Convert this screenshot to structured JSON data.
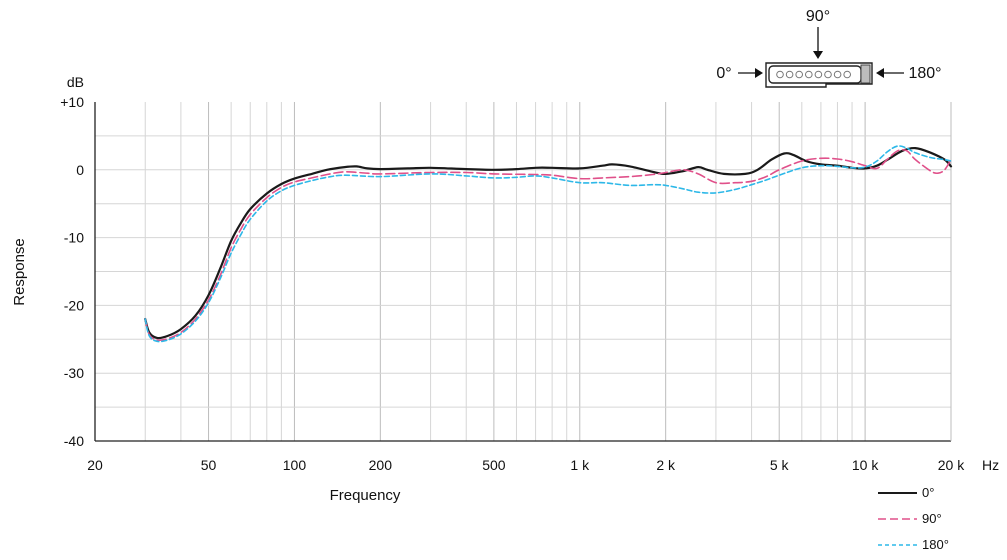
{
  "chart_data": {
    "type": "line",
    "title": "",
    "xlabel": "Frequency",
    "ylabel": "Response",
    "yunit": "dB",
    "xunit": "Hz",
    "xscale": "log",
    "xlim": [
      20,
      20000
    ],
    "ylim": [
      -40,
      10
    ],
    "grid": true,
    "legend_position": "bottom-right",
    "x_ticks": [
      {
        "value": 20,
        "label": "20"
      },
      {
        "value": 50,
        "label": "50"
      },
      {
        "value": 100,
        "label": "100"
      },
      {
        "value": 200,
        "label": "200"
      },
      {
        "value": 500,
        "label": "500"
      },
      {
        "value": 1000,
        "label": "1 k"
      },
      {
        "value": 2000,
        "label": "2 k"
      },
      {
        "value": 5000,
        "label": "5 k"
      },
      {
        "value": 10000,
        "label": "10 k"
      },
      {
        "value": 20000,
        "label": "20 k"
      }
    ],
    "y_ticks": [
      {
        "value": 10,
        "label": "+10"
      },
      {
        "value": 0,
        "label": "0"
      },
      {
        "value": -10,
        "label": "-10"
      },
      {
        "value": -20,
        "label": "-20"
      },
      {
        "value": -30,
        "label": "-30"
      },
      {
        "value": -40,
        "label": "-40"
      }
    ],
    "series": [
      {
        "name": "0°",
        "color": "#1a1a1a",
        "dash": "solid",
        "points": [
          [
            30,
            -22
          ],
          [
            31,
            -24
          ],
          [
            33,
            -24.8
          ],
          [
            36,
            -24.5
          ],
          [
            40,
            -23.5
          ],
          [
            45,
            -21.5
          ],
          [
            50,
            -18.5
          ],
          [
            55,
            -14.5
          ],
          [
            60,
            -10.5
          ],
          [
            65,
            -7.8
          ],
          [
            70,
            -5.8
          ],
          [
            80,
            -3.5
          ],
          [
            90,
            -2.1
          ],
          [
            100,
            -1.3
          ],
          [
            115,
            -0.6
          ],
          [
            130,
            0
          ],
          [
            150,
            0.4
          ],
          [
            165,
            0.5
          ],
          [
            180,
            0.2
          ],
          [
            200,
            0.1
          ],
          [
            250,
            0.2
          ],
          [
            300,
            0.3
          ],
          [
            400,
            0.1
          ],
          [
            500,
            0
          ],
          [
            600,
            0.1
          ],
          [
            700,
            0.3
          ],
          [
            800,
            0.3
          ],
          [
            1000,
            0.2
          ],
          [
            1200,
            0.6
          ],
          [
            1300,
            0.8
          ],
          [
            1500,
            0.5
          ],
          [
            1800,
            -0.3
          ],
          [
            2000,
            -0.6
          ],
          [
            2300,
            -0.2
          ],
          [
            2600,
            0.4
          ],
          [
            2800,
            0
          ],
          [
            3200,
            -0.6
          ],
          [
            3800,
            -0.6
          ],
          [
            4200,
            0
          ],
          [
            4700,
            1.5
          ],
          [
            5200,
            2.4
          ],
          [
            5600,
            2.2
          ],
          [
            6200,
            1.3
          ],
          [
            7000,
            0.8
          ],
          [
            8000,
            0.6
          ],
          [
            9000,
            0.3
          ],
          [
            10000,
            0.2
          ],
          [
            11000,
            0.6
          ],
          [
            12000,
            1.5
          ],
          [
            13500,
            2.8
          ],
          [
            15000,
            3.2
          ],
          [
            17000,
            2.5
          ],
          [
            19000,
            1.5
          ],
          [
            20000,
            0.5
          ]
        ]
      },
      {
        "name": "90°",
        "color": "#e0508a",
        "dash": "long-dash",
        "points": [
          [
            30,
            -22
          ],
          [
            31,
            -24.3
          ],
          [
            33,
            -25.1
          ],
          [
            36,
            -24.9
          ],
          [
            40,
            -24
          ],
          [
            45,
            -22
          ],
          [
            50,
            -19.2
          ],
          [
            55,
            -15.5
          ],
          [
            60,
            -11.5
          ],
          [
            65,
            -8.7
          ],
          [
            70,
            -6.6
          ],
          [
            80,
            -4.1
          ],
          [
            90,
            -2.6
          ],
          [
            100,
            -1.8
          ],
          [
            115,
            -1.2
          ],
          [
            130,
            -0.7
          ],
          [
            150,
            -0.3
          ],
          [
            180,
            -0.5
          ],
          [
            200,
            -0.6
          ],
          [
            300,
            -0.4
          ],
          [
            400,
            -0.4
          ],
          [
            500,
            -0.6
          ],
          [
            700,
            -0.7
          ],
          [
            800,
            -0.8
          ],
          [
            1000,
            -1.3
          ],
          [
            1200,
            -1.2
          ],
          [
            1500,
            -1
          ],
          [
            1800,
            -0.7
          ],
          [
            2000,
            -0.4
          ],
          [
            2300,
            0
          ],
          [
            2600,
            -0.6
          ],
          [
            3000,
            -1.9
          ],
          [
            3500,
            -1.9
          ],
          [
            4000,
            -1.7
          ],
          [
            4500,
            -1
          ],
          [
            5000,
            0
          ],
          [
            6000,
            1.3
          ],
          [
            7000,
            1.7
          ],
          [
            8000,
            1.6
          ],
          [
            9000,
            1.2
          ],
          [
            10000,
            0.6
          ],
          [
            11000,
            0.2
          ],
          [
            12000,
            1.6
          ],
          [
            13000,
            2.8
          ],
          [
            14000,
            2.8
          ],
          [
            15000,
            1.5
          ],
          [
            17000,
            -0.2
          ],
          [
            18000,
            -0.5
          ],
          [
            19000,
            0
          ],
          [
            20000,
            1.5
          ]
        ]
      },
      {
        "name": "180°",
        "color": "#2db8e8",
        "dash": "short-dash",
        "points": [
          [
            30,
            -22
          ],
          [
            31,
            -24.5
          ],
          [
            33,
            -25.3
          ],
          [
            36,
            -25.1
          ],
          [
            40,
            -24.2
          ],
          [
            45,
            -22.3
          ],
          [
            50,
            -19.6
          ],
          [
            55,
            -16
          ],
          [
            60,
            -12.3
          ],
          [
            65,
            -9.5
          ],
          [
            70,
            -7.3
          ],
          [
            80,
            -4.6
          ],
          [
            90,
            -3.1
          ],
          [
            100,
            -2.3
          ],
          [
            115,
            -1.6
          ],
          [
            130,
            -1.1
          ],
          [
            150,
            -0.8
          ],
          [
            200,
            -1
          ],
          [
            300,
            -0.6
          ],
          [
            400,
            -0.9
          ],
          [
            500,
            -1.2
          ],
          [
            600,
            -1.1
          ],
          [
            700,
            -0.9
          ],
          [
            800,
            -1.2
          ],
          [
            1000,
            -1.9
          ],
          [
            1200,
            -1.9
          ],
          [
            1500,
            -2.3
          ],
          [
            1800,
            -2.2
          ],
          [
            2000,
            -2.3
          ],
          [
            2300,
            -2.8
          ],
          [
            2600,
            -3.3
          ],
          [
            3000,
            -3.4
          ],
          [
            3500,
            -2.9
          ],
          [
            4000,
            -2.2
          ],
          [
            4500,
            -1.5
          ],
          [
            5000,
            -0.8
          ],
          [
            6000,
            0.3
          ],
          [
            7000,
            0.6
          ],
          [
            8000,
            0.5
          ],
          [
            9000,
            0.3
          ],
          [
            10000,
            0.4
          ],
          [
            11000,
            1.3
          ],
          [
            12000,
            2.7
          ],
          [
            13000,
            3.5
          ],
          [
            14000,
            3.2
          ],
          [
            15000,
            2.5
          ],
          [
            17000,
            1.8
          ],
          [
            19000,
            1.5
          ],
          [
            20000,
            1.3
          ]
        ]
      }
    ],
    "directivity_diagram": {
      "labels": {
        "front": "0°",
        "side": "90°",
        "rear": "180°"
      }
    }
  }
}
